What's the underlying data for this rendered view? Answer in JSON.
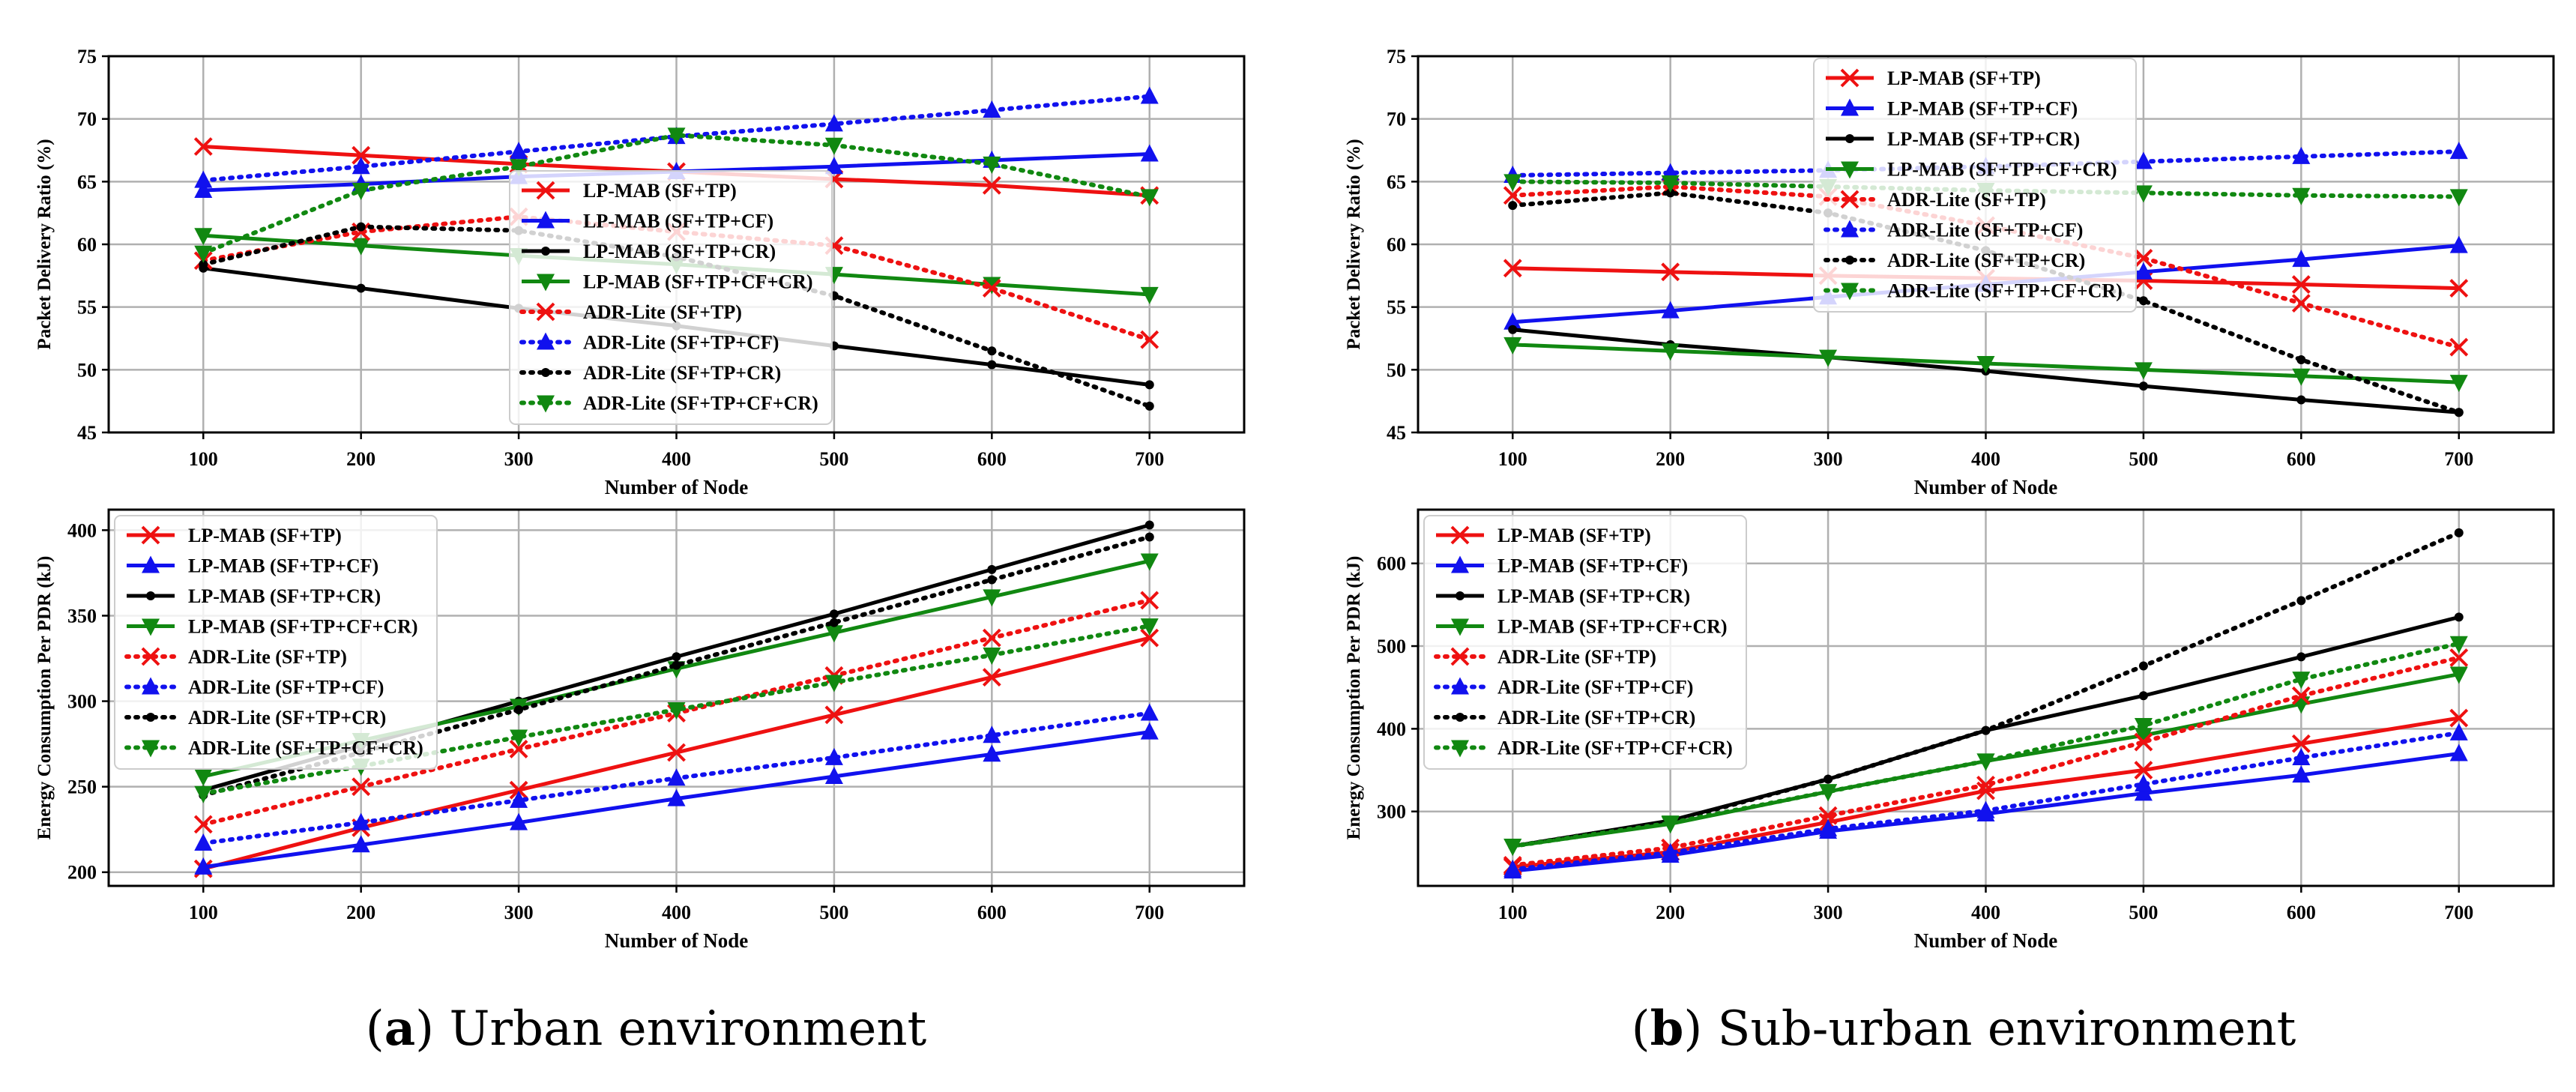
{
  "figure": {
    "captions": [
      {
        "letter": "a",
        "text": ") Urban environment",
        "open": "("
      },
      {
        "letter": "b",
        "text": ") Sub-urban environment",
        "open": "("
      }
    ]
  },
  "styles": {
    "series_styles": [
      {
        "color": "#ee1111",
        "dash": "solid",
        "marker": "x"
      },
      {
        "color": "#1111ee",
        "dash": "solid",
        "marker": "triangle-up"
      },
      {
        "color": "#000000",
        "dash": "solid",
        "marker": "dot"
      },
      {
        "color": "#118811",
        "dash": "solid",
        "marker": "triangle-down"
      },
      {
        "color": "#ee1111",
        "dash": "dotted",
        "marker": "x"
      },
      {
        "color": "#1111ee",
        "dash": "dotted",
        "marker": "triangle-up"
      },
      {
        "color": "#000000",
        "dash": "dotted",
        "marker": "dot"
      },
      {
        "color": "#118811",
        "dash": "dotted",
        "marker": "triangle-down"
      }
    ]
  },
  "chart_data": [
    {
      "id": "urban-pdr",
      "type": "line",
      "title": "",
      "xlabel": "Number of Node",
      "ylabel": "Packet Delivery Ratio (%)",
      "x": [
        100,
        200,
        300,
        400,
        500,
        600,
        700
      ],
      "xticks": [
        "100",
        "200",
        "300",
        "400",
        "500",
        "600",
        "700"
      ],
      "ylim": [
        45,
        75
      ],
      "yticks": [
        45,
        50,
        55,
        60,
        65,
        70,
        75
      ],
      "grid": true,
      "legend_position": "center",
      "series": [
        {
          "name": "LP-MAB (SF+TP)",
          "values": [
            67.8,
            67.1,
            66.4,
            65.8,
            65.2,
            64.7,
            63.9
          ]
        },
        {
          "name": "LP-MAB (SF+TP+CF)",
          "values": [
            64.3,
            64.8,
            65.4,
            65.8,
            66.2,
            66.7,
            67.2
          ]
        },
        {
          "name": "LP-MAB (SF+TP+CR)",
          "values": [
            58.1,
            56.5,
            54.9,
            53.5,
            51.9,
            50.4,
            48.8
          ]
        },
        {
          "name": "LP-MAB (SF+TP+CF+CR)",
          "values": [
            60.7,
            59.9,
            59.1,
            58.4,
            57.6,
            56.8,
            56.0
          ]
        },
        {
          "name": "ADR-Lite (SF+TP)",
          "values": [
            58.7,
            61.0,
            62.2,
            61.0,
            59.9,
            56.5,
            52.4
          ]
        },
        {
          "name": "ADR-Lite (SF+TP+CF)",
          "values": [
            65.1,
            66.2,
            67.4,
            68.6,
            69.6,
            70.7,
            71.8
          ]
        },
        {
          "name": "ADR-Lite (SF+TP+CR)",
          "values": [
            58.4,
            61.4,
            61.1,
            59.0,
            55.9,
            51.5,
            47.1
          ]
        },
        {
          "name": "ADR-Lite (SF+TP+CF+CR)",
          "values": [
            59.3,
            64.3,
            66.2,
            68.7,
            67.9,
            66.4,
            63.8
          ]
        }
      ]
    },
    {
      "id": "urban-energy",
      "type": "line",
      "title": "",
      "xlabel": "Number of Node",
      "ylabel": "Energy Consumption Per PDR (kJ)",
      "x": [
        100,
        200,
        300,
        400,
        500,
        600,
        700
      ],
      "xticks": [
        "100",
        "200",
        "300",
        "400",
        "500",
        "600",
        "700"
      ],
      "ylim": [
        192,
        412
      ],
      "yticks": [
        200,
        250,
        300,
        350,
        400
      ],
      "grid": true,
      "legend_position": "upper left",
      "series": [
        {
          "name": "LP-MAB (SF+TP)",
          "values": [
            202,
            226,
            248,
            270,
            292,
            314,
            337
          ]
        },
        {
          "name": "LP-MAB (SF+TP+CF)",
          "values": [
            203,
            216,
            229,
            243,
            256,
            269,
            282
          ]
        },
        {
          "name": "LP-MAB (SF+TP+CR)",
          "values": [
            248,
            274,
            300,
            326,
            351,
            377,
            403
          ]
        },
        {
          "name": "LP-MAB (SF+TP+CF+CR)",
          "values": [
            256,
            277,
            297,
            319,
            340,
            361,
            382
          ]
        },
        {
          "name": "ADR-Lite (SF+TP)",
          "values": [
            228,
            250,
            272,
            293,
            315,
            337,
            359
          ]
        },
        {
          "name": "ADR-Lite (SF+TP+CF)",
          "values": [
            217,
            229,
            242,
            255,
            267,
            280,
            293
          ]
        },
        {
          "name": "ADR-Lite (SF+TP+CR)",
          "values": [
            245,
            270,
            295,
            321,
            346,
            371,
            396
          ]
        },
        {
          "name": "ADR-Lite (SF+TP+CF+CR)",
          "values": [
            246,
            262,
            279,
            295,
            311,
            327,
            344
          ]
        }
      ]
    },
    {
      "id": "suburban-pdr",
      "type": "line",
      "title": "",
      "xlabel": "Number of Node",
      "ylabel": "Packet Delivery Ratio (%)",
      "x": [
        100,
        200,
        300,
        400,
        500,
        600,
        700
      ],
      "xticks": [
        "100",
        "200",
        "300",
        "400",
        "500",
        "600",
        "700"
      ],
      "ylim": [
        45,
        75
      ],
      "yticks": [
        45,
        50,
        55,
        60,
        65,
        70,
        75
      ],
      "grid": true,
      "legend_position": "upper center",
      "series": [
        {
          "name": "LP-MAB (SF+TP)",
          "values": [
            58.1,
            57.8,
            57.5,
            57.3,
            57.1,
            56.8,
            56.5
          ]
        },
        {
          "name": "LP-MAB (SF+TP+CF)",
          "values": [
            53.8,
            54.7,
            55.8,
            56.8,
            57.8,
            58.8,
            59.9
          ]
        },
        {
          "name": "LP-MAB (SF+TP+CR)",
          "values": [
            53.2,
            52.0,
            51.0,
            49.9,
            48.7,
            47.6,
            46.6
          ]
        },
        {
          "name": "LP-MAB (SF+TP+CF+CR)",
          "values": [
            52.0,
            51.5,
            51.0,
            50.5,
            50.0,
            49.5,
            49.0
          ]
        },
        {
          "name": "ADR-Lite (SF+TP)",
          "values": [
            63.9,
            64.6,
            63.8,
            61.5,
            58.9,
            55.3,
            51.8
          ]
        },
        {
          "name": "ADR-Lite (SF+TP+CF)",
          "values": [
            65.5,
            65.7,
            65.9,
            66.2,
            66.6,
            67.0,
            67.4
          ]
        },
        {
          "name": "ADR-Lite (SF+TP+CR)",
          "values": [
            63.1,
            64.1,
            62.5,
            59.5,
            55.5,
            50.8,
            46.6
          ]
        },
        {
          "name": "ADR-Lite (SF+TP+CF+CR)",
          "values": [
            65.0,
            64.9,
            64.6,
            64.3,
            64.1,
            63.9,
            63.8
          ]
        }
      ]
    },
    {
      "id": "suburban-energy",
      "type": "line",
      "title": "",
      "xlabel": "Number of Node",
      "ylabel": "Energy Consumption Per PDR (kJ)",
      "x": [
        100,
        200,
        300,
        400,
        500,
        600,
        700
      ],
      "xticks": [
        "100",
        "200",
        "300",
        "400",
        "500",
        "600",
        "700"
      ],
      "ylim": [
        210,
        665
      ],
      "yticks": [
        300,
        400,
        500,
        600
      ],
      "grid": true,
      "legend_position": "upper left",
      "series": [
        {
          "name": "LP-MAB (SF+TP)",
          "values": [
            233,
            251,
            287,
            325,
            350,
            382,
            413
          ]
        },
        {
          "name": "LP-MAB (SF+TP+CF)",
          "values": [
            228,
            247,
            276,
            297,
            322,
            344,
            370
          ]
        },
        {
          "name": "LP-MAB (SF+TP+CR)",
          "values": [
            258,
            289,
            339,
            398,
            440,
            487,
            535
          ]
        },
        {
          "name": "LP-MAB (SF+TP+CF+CR)",
          "values": [
            258,
            285,
            324,
            361,
            392,
            430,
            466
          ]
        },
        {
          "name": "ADR-Lite (SF+TP)",
          "values": [
            235,
            256,
            295,
            332,
            384,
            440,
            486
          ]
        },
        {
          "name": "ADR-Lite (SF+TP+CF)",
          "values": [
            230,
            250,
            279,
            301,
            333,
            365,
            395
          ]
        },
        {
          "name": "ADR-Lite (SF+TP+CR)",
          "values": [
            258,
            288,
            339,
            398,
            476,
            555,
            637
          ]
        },
        {
          "name": "ADR-Lite (SF+TP+CF+CR)",
          "values": [
            258,
            286,
            324,
            361,
            404,
            460,
            503
          ]
        }
      ]
    }
  ]
}
